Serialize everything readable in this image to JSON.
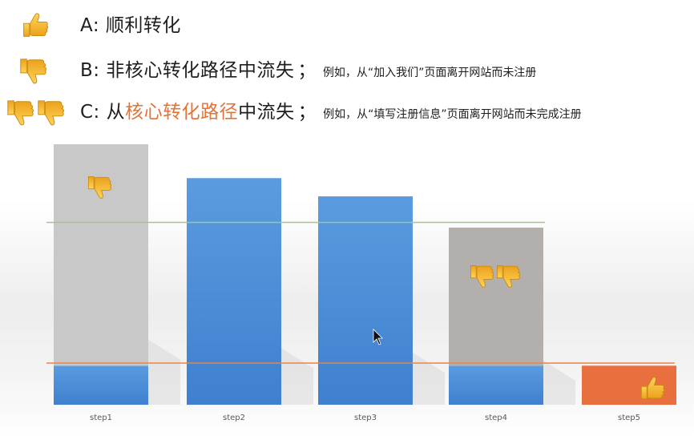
{
  "legend": {
    "a": {
      "label": "A: 顺利转化",
      "icon": "thumbs-up-icon"
    },
    "b": {
      "prefix": "B: ",
      "main": "非核心转化路径中流失",
      "sep": "；",
      "note": "例如，从“加入我们”页面离开网站而未注册",
      "icon": "thumbs-down-icon"
    },
    "c": {
      "prefix": "C: 从",
      "highlight": "核心转化路径",
      "suffix": "中流失",
      "sep": "；",
      "note": "例如，从“填写注册信息”页面离开网站而未完成注册",
      "icon": "double-thumbs-down-icon"
    }
  },
  "chart_data": {
    "type": "bar",
    "title": "",
    "xlabel": "",
    "ylabel": "",
    "categories": [
      "step1",
      "step2",
      "step3",
      "step4",
      "step5"
    ],
    "ylim": [
      0,
      100
    ],
    "grid": false,
    "series": [
      {
        "values": [
          15,
          87,
          80,
          15,
          15
        ],
        "color": "#4a8fd8"
      },
      {
        "values": [
          85,
          0,
          0,
          53,
          0
        ],
        "color": "#c8c8c8"
      },
      {
        "values": [
          0,
          0,
          0,
          0,
          0
        ],
        "color": "#e8703f"
      }
    ],
    "reference_lines": [
      {
        "value": 70,
        "color": "#9fc88a"
      },
      {
        "value": 16,
        "color": "#e8854a"
      }
    ],
    "annotations": [
      {
        "category": "step1",
        "icon": "thumbs-down-icon"
      },
      {
        "category": "step4",
        "icon": "double-thumbs-down-icon"
      },
      {
        "category": "step5",
        "icon": "thumbs-up-icon"
      }
    ],
    "colors": {
      "blue": "#4a8fd8",
      "gray": "#c8c8c8",
      "gray_dark": "#b2afad",
      "orange": "#e8703f",
      "thumb": "#f5b829"
    }
  }
}
